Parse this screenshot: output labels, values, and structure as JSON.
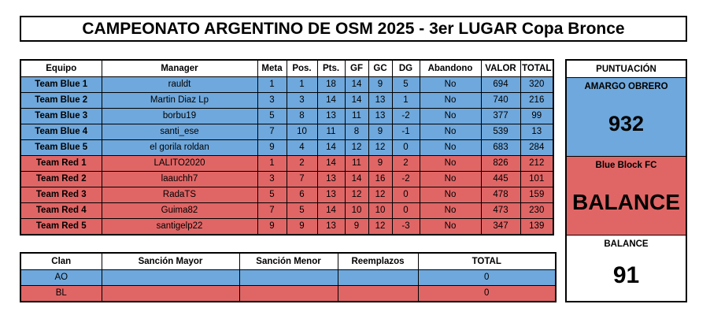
{
  "title": "CAMPEONATO ARGENTINO DE OSM 2025 - 3er LUGAR Copa Bronce",
  "main_table": {
    "headers": [
      "Equipo",
      "Manager",
      "Meta",
      "Pos.",
      "Pts.",
      "GF",
      "GC",
      "DG",
      "Abandono",
      "VALOR",
      "TOTAL"
    ],
    "rows": [
      [
        "Team Blue 1",
        "rauldt",
        "1",
        "1",
        "18",
        "14",
        "9",
        "5",
        "No",
        "694",
        "320"
      ],
      [
        "Team Blue 2",
        "Martin Diaz Lp",
        "3",
        "3",
        "14",
        "14",
        "13",
        "1",
        "No",
        "740",
        "216"
      ],
      [
        "Team Blue 3",
        "borbu19",
        "5",
        "8",
        "13",
        "11",
        "13",
        "-2",
        "No",
        "377",
        "99"
      ],
      [
        "Team Blue 4",
        "santi_ese",
        "7",
        "10",
        "11",
        "8",
        "9",
        "-1",
        "No",
        "539",
        "13"
      ],
      [
        "Team Blue 5",
        "el gorila roldan",
        "9",
        "4",
        "14",
        "12",
        "12",
        "0",
        "No",
        "683",
        "284"
      ],
      [
        "Team Red 1",
        "LALITO2020",
        "1",
        "2",
        "14",
        "11",
        "9",
        "2",
        "No",
        "826",
        "212"
      ],
      [
        "Team Red 2",
        "laauchh7",
        "3",
        "7",
        "13",
        "14",
        "16",
        "-2",
        "No",
        "445",
        "101"
      ],
      [
        "Team Red 3",
        "RadaTS",
        "5",
        "6",
        "13",
        "12",
        "12",
        "0",
        "No",
        "478",
        "159"
      ],
      [
        "Team Red 4",
        "Guima82",
        "7",
        "5",
        "14",
        "10",
        "10",
        "0",
        "No",
        "473",
        "230"
      ],
      [
        "Team Red 5",
        "santigelp22",
        "9",
        "9",
        "13",
        "9",
        "12",
        "-3",
        "No",
        "347",
        "139"
      ]
    ]
  },
  "clan_table": {
    "headers": [
      "Clan",
      "Sanción Mayor",
      "Sanción Menor",
      "Reemplazos",
      "TOTAL"
    ],
    "rows": [
      [
        "AO",
        "",
        "",
        "",
        "0"
      ],
      [
        "BL",
        "",
        "",
        "",
        "0"
      ]
    ]
  },
  "puntuacion": {
    "header": "PUNTUACIÓN",
    "team_a_name": "AMARGO OBRERO",
    "team_a_score": "932",
    "team_b_name": "Blue Block FC",
    "team_b_value": "BALANCE",
    "balance_label": "BALANCE",
    "balance_value": "91"
  },
  "colors": {
    "blue": "#6fa8dc",
    "red": "#e06666"
  }
}
